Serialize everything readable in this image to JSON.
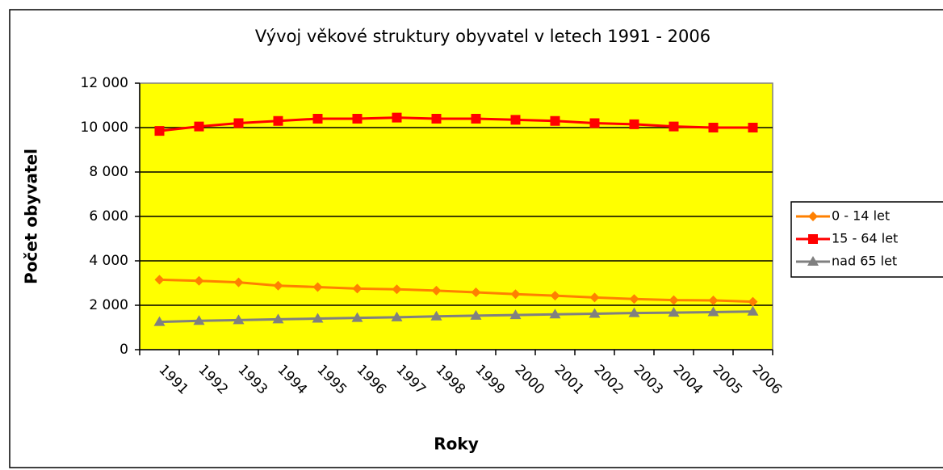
{
  "chart_data": {
    "type": "line",
    "title": "Vývoj věkové struktury obyvatel v letech 1991 - 2006",
    "x_label": "Roky",
    "y_label": "Počet obyvatel",
    "categories": [
      "1991",
      "1992",
      "1993",
      "1994",
      "1995",
      "1996",
      "1997",
      "1998",
      "1999",
      "2000",
      "2001",
      "2002",
      "2003",
      "2004",
      "2005",
      "2006"
    ],
    "series": [
      {
        "name": "0 - 14 let",
        "color": "#ff8000",
        "marker": "diamond",
        "values": [
          3150,
          3100,
          3030,
          2880,
          2820,
          2750,
          2720,
          2660,
          2580,
          2500,
          2430,
          2350,
          2280,
          2230,
          2220,
          2160
        ]
      },
      {
        "name": "15 - 64 let",
        "color": "#ff0000",
        "marker": "square",
        "values": [
          9850,
          10050,
          10200,
          10300,
          10400,
          10400,
          10450,
          10400,
          10400,
          10350,
          10300,
          10200,
          10150,
          10050,
          10000,
          10000
        ]
      },
      {
        "name": "nad 65 let",
        "color": "#808080",
        "marker": "triangle",
        "values": [
          1250,
          1300,
          1330,
          1370,
          1400,
          1430,
          1460,
          1500,
          1530,
          1560,
          1590,
          1620,
          1650,
          1670,
          1690,
          1720
        ]
      }
    ],
    "ylim": [
      0,
      12000
    ],
    "yticks": [
      0,
      {
        "value": 2000,
        "label": "2 000"
      },
      {
        "value": 4000,
        "label": "4 000"
      },
      {
        "value": 6000,
        "label": "6 000"
      },
      {
        "value": 8000,
        "label": "8 000"
      },
      {
        "value": 10000,
        "label": "10 000"
      },
      {
        "value": 12000,
        "label": "12 000"
      }
    ],
    "grid": true,
    "plot_background": "#ffff00",
    "legend": "right"
  }
}
